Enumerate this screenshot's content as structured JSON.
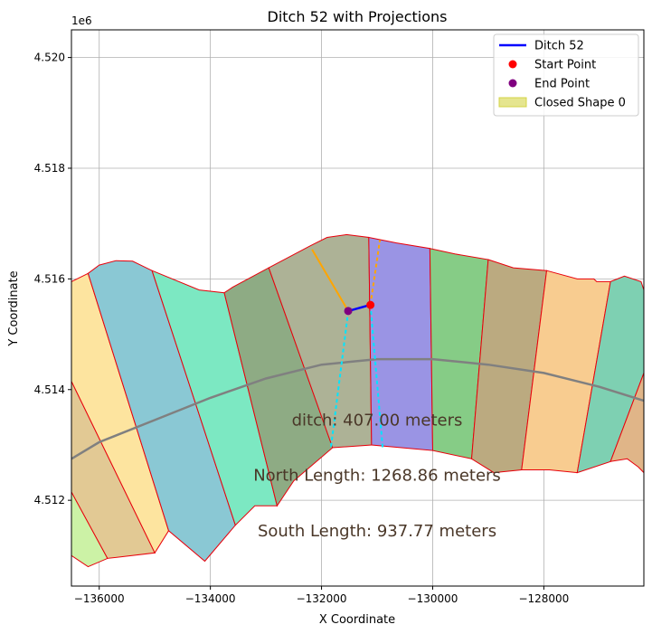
{
  "chart_data": {
    "type": "line",
    "title": "Ditch 52 with Projections",
    "xlabel": "X Coordinate",
    "ylabel": "Y Coordinate",
    "y_offset_label": "1e6",
    "xlim": [
      -136500,
      -126200
    ],
    "ylim": [
      4510450,
      4520500
    ],
    "grid": true,
    "legend_position": "top-right",
    "x_ticks": [
      {
        "value": -136000,
        "label": "−136000"
      },
      {
        "value": -134000,
        "label": "−134000"
      },
      {
        "value": -132000,
        "label": "−132000"
      },
      {
        "value": -130000,
        "label": "−130000"
      },
      {
        "value": -128000,
        "label": "−128000"
      }
    ],
    "y_ticks": [
      {
        "value": 4512000,
        "label": "4.512"
      },
      {
        "value": 4514000,
        "label": "4.514"
      },
      {
        "value": 4516000,
        "label": "4.516"
      },
      {
        "value": 4518000,
        "label": "4.518"
      },
      {
        "value": 4520000,
        "label": "4.520"
      }
    ],
    "legend": [
      {
        "label": "Ditch 52",
        "kind": "line",
        "color": "#0000ff"
      },
      {
        "label": "Start Point",
        "kind": "point",
        "color": "#ff0000"
      },
      {
        "label": "End Point",
        "kind": "point",
        "color": "#800080"
      },
      {
        "label": "Closed Shape 0",
        "kind": "patch",
        "color": "#d4d444"
      }
    ],
    "annotations": [
      {
        "text": "ditch: 407.00 meters",
        "x": -131000,
        "y": 4513350
      },
      {
        "text": "North Length: 1268.86 meters",
        "x": -131000,
        "y": 4512350
      },
      {
        "text": "South Length: 937.77 meters",
        "x": -131000,
        "y": 4511350
      }
    ],
    "polygons": [
      {
        "fill": "#ccf2a6",
        "points": [
          [
            -136500,
            4511000
          ],
          [
            -136500,
            4512150
          ],
          [
            -135850,
            4510950
          ],
          [
            -136200,
            4510800
          ]
        ]
      },
      {
        "fill": "#e2c994",
        "points": [
          [
            -136500,
            4512150
          ],
          [
            -136500,
            4514150
          ],
          [
            -135000,
            4511050
          ],
          [
            -135850,
            4510950
          ]
        ]
      },
      {
        "fill": "#fde49f",
        "points": [
          [
            -136500,
            4514150
          ],
          [
            -136500,
            4515950
          ],
          [
            -136200,
            4516100
          ],
          [
            -134750,
            4511450
          ],
          [
            -135000,
            4511050
          ]
        ]
      },
      {
        "fill": "#8ac8d4",
        "points": [
          [
            -136200,
            4516100
          ],
          [
            -136000,
            4516250
          ],
          [
            -135700,
            4516330
          ],
          [
            -135400,
            4516320
          ],
          [
            -135050,
            4516150
          ],
          [
            -133550,
            4511550
          ],
          [
            -134100,
            4510900
          ],
          [
            -134750,
            4511450
          ]
        ]
      },
      {
        "fill": "#7ce8c2",
        "points": [
          [
            -135050,
            4516150
          ],
          [
            -134200,
            4515800
          ],
          [
            -133750,
            4515750
          ],
          [
            -132800,
            4511900
          ],
          [
            -133200,
            4511900
          ],
          [
            -133550,
            4511550
          ]
        ]
      },
      {
        "fill": "#8eab84",
        "points": [
          [
            -133750,
            4515750
          ],
          [
            -133600,
            4515850
          ],
          [
            -132950,
            4516200
          ],
          [
            -131800,
            4512950
          ],
          [
            -132500,
            4512350
          ],
          [
            -132800,
            4511900
          ]
        ]
      },
      {
        "fill": "#adb296",
        "points": [
          [
            -132950,
            4516200
          ],
          [
            -132200,
            4516600
          ],
          [
            -131900,
            4516750
          ],
          [
            -131550,
            4516800
          ],
          [
            -131150,
            4516750
          ],
          [
            -131100,
            4513000
          ],
          [
            -131800,
            4512950
          ]
        ]
      },
      {
        "fill": "#9a94e4",
        "points": [
          [
            -131150,
            4516750
          ],
          [
            -130650,
            4516650
          ],
          [
            -130050,
            4516550
          ],
          [
            -130000,
            4512900
          ],
          [
            -131100,
            4513000
          ]
        ]
      },
      {
        "fill": "#86cc86",
        "points": [
          [
            -130050,
            4516550
          ],
          [
            -129600,
            4516450
          ],
          [
            -129000,
            4516350
          ],
          [
            -129300,
            4512750
          ],
          [
            -130000,
            4512900
          ]
        ]
      },
      {
        "fill": "#bbaa80",
        "points": [
          [
            -129000,
            4516350
          ],
          [
            -128550,
            4516200
          ],
          [
            -127950,
            4516150
          ],
          [
            -128400,
            4512550
          ],
          [
            -128900,
            4512500
          ],
          [
            -129300,
            4512750
          ]
        ]
      },
      {
        "fill": "#f8cc90",
        "points": [
          [
            -127950,
            4516150
          ],
          [
            -127400,
            4516000
          ],
          [
            -127100,
            4516000
          ],
          [
            -127050,
            4515950
          ],
          [
            -126800,
            4515950
          ],
          [
            -127400,
            4512500
          ],
          [
            -127900,
            4512550
          ],
          [
            -128400,
            4512550
          ]
        ]
      },
      {
        "fill": "#7ed0b2",
        "points": [
          [
            -126800,
            4515950
          ],
          [
            -126550,
            4516050
          ],
          [
            -126250,
            4515950
          ],
          [
            -126200,
            4515800
          ],
          [
            -126200,
            4514300
          ],
          [
            -126800,
            4512700
          ],
          [
            -127400,
            4512500
          ]
        ]
      },
      {
        "fill": "#e0b588",
        "points": [
          [
            -126200,
            4514300
          ],
          [
            -126800,
            4512700
          ],
          [
            -126500,
            4512750
          ],
          [
            -126300,
            4512600
          ],
          [
            -126200,
            4512500
          ]
        ]
      }
    ],
    "centerline": [
      [
        -136500,
        4512750
      ],
      [
        -136000,
        4513050
      ],
      [
        -135000,
        4513450
      ],
      [
        -134000,
        4513850
      ],
      [
        -133000,
        4514200
      ],
      [
        -132000,
        4514450
      ],
      [
        -131000,
        4514550
      ],
      [
        -130000,
        4514550
      ],
      [
        -129000,
        4514450
      ],
      [
        -128000,
        4514300
      ],
      [
        -127000,
        4514050
      ],
      [
        -126200,
        4513800
      ]
    ],
    "ditch": {
      "start": [
        -131120,
        4515530
      ],
      "end": [
        -131520,
        4515420
      ],
      "projections": [
        {
          "color": "#ffa500",
          "style": "solid",
          "points": [
            [
              -131520,
              4515420
            ],
            [
              -132170,
              4516530
            ]
          ]
        },
        {
          "color": "#ffa500",
          "style": "dashed",
          "points": [
            [
              -131120,
              4515530
            ],
            [
              -130950,
              4516700
            ]
          ]
        },
        {
          "color": "#00e5ff",
          "style": "dashed",
          "points": [
            [
              -131520,
              4515420
            ],
            [
              -131830,
              4512960
            ]
          ]
        },
        {
          "color": "#00e5ff",
          "style": "dashed",
          "points": [
            [
              -131120,
              4515530
            ],
            [
              -130900,
              4512940
            ]
          ]
        }
      ]
    }
  }
}
